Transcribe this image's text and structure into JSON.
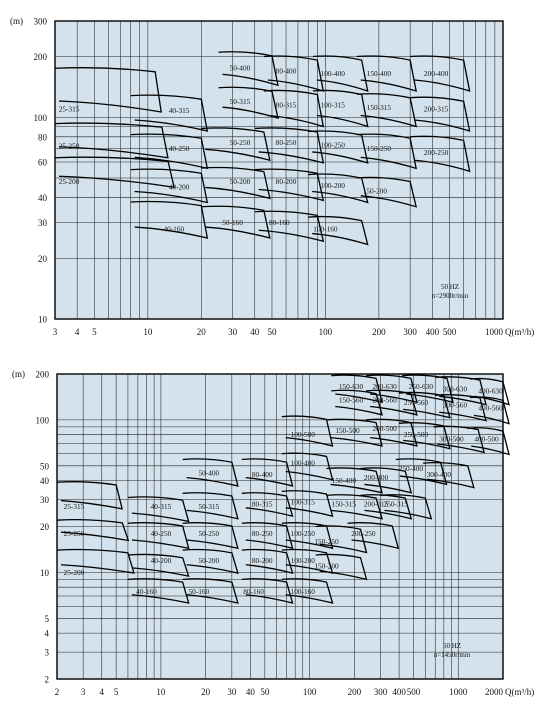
{
  "colors": {
    "plot_bg": "#d3e2ec",
    "line": "#000000"
  },
  "chart_data": [
    {
      "type": "line",
      "subtype": "pump-performance-range-chart",
      "log_scale": {
        "x": true,
        "y": true
      },
      "grid": true,
      "xlabel": "Q(m³/h)",
      "ylabel": "(m)",
      "xlim": [
        3,
        1000
      ],
      "ylim": [
        10,
        300
      ],
      "x_ticks": [
        {
          "v": 3,
          "label": "3"
        },
        {
          "v": 4,
          "label": "4"
        },
        {
          "v": 5,
          "label": "5"
        },
        {
          "v": 10,
          "label": "10"
        },
        {
          "v": 20,
          "label": "20"
        },
        {
          "v": 30,
          "label": "30"
        },
        {
          "v": 40,
          "label": "40"
        },
        {
          "v": 50,
          "label": "50"
        },
        {
          "v": 100,
          "label": "100"
        },
        {
          "v": 200,
          "label": "200"
        },
        {
          "v": 300,
          "label": "300"
        },
        {
          "v": 400,
          "label": "400"
        },
        {
          "v": 500,
          "label": "500"
        },
        {
          "v": 1000,
          "label": "1000"
        }
      ],
      "y_ticks": [
        {
          "v": 10,
          "label": "10"
        },
        {
          "v": 20,
          "label": "20"
        },
        {
          "v": 30,
          "label": "30"
        },
        {
          "v": 40,
          "label": "40"
        },
        {
          "v": 60,
          "label": "60"
        },
        {
          "v": 80,
          "label": "80"
        },
        {
          "v": 100,
          "label": "100"
        },
        {
          "v": 200,
          "label": "200"
        },
        {
          "v": 300,
          "label": "300"
        }
      ],
      "annotation": [
        "50 HZ",
        "n=2900r/min"
      ],
      "fields": [
        {
          "label": "25-315",
          "q": 3.6,
          "h": 110,
          "qL": 3,
          "qR": 11,
          "hTop": 175,
          "hBot": 118
        },
        {
          "label": "25-250",
          "q": 3.6,
          "h": 72,
          "qL": 3,
          "qR": 12,
          "hTop": 93,
          "hBot": 70
        },
        {
          "label": "25-200",
          "q": 3.6,
          "h": 48,
          "qL": 3,
          "qR": 13,
          "hTop": 63,
          "hBot": 50
        },
        {
          "label": "40-315",
          "q": 15,
          "h": 108,
          "qL": 8,
          "qR": 20,
          "hTop": 128,
          "hBot": 95
        },
        {
          "label": "40-250",
          "q": 15,
          "h": 70,
          "qL": 8,
          "qR": 20,
          "hTop": 82,
          "hBot": 62
        },
        {
          "label": "40-200",
          "q": 15,
          "h": 45,
          "qL": 8,
          "qR": 20,
          "hTop": 55,
          "hBot": 42
        },
        {
          "label": "40-160",
          "q": 14,
          "h": 28,
          "qL": 8,
          "qR": 20,
          "hTop": 38,
          "hBot": 28
        },
        {
          "label": "50-400",
          "q": 33,
          "h": 175,
          "qL": 25,
          "qR": 50,
          "hTop": 210,
          "hBot": 160
        },
        {
          "label": "50-315",
          "q": 33,
          "h": 120,
          "qL": 25,
          "qR": 50,
          "hTop": 140,
          "hBot": 110
        },
        {
          "label": "50-250",
          "q": 33,
          "h": 75,
          "qL": 20,
          "qR": 45,
          "hTop": 88,
          "hBot": 68
        },
        {
          "label": "50-200",
          "q": 33,
          "h": 48,
          "qL": 20,
          "qR": 45,
          "hTop": 56,
          "hBot": 44
        },
        {
          "label": "50-160",
          "q": 30,
          "h": 30,
          "qL": 20,
          "qR": 45,
          "hTop": 36,
          "hBot": 28
        },
        {
          "label": "80-400",
          "q": 60,
          "h": 170,
          "qL": 45,
          "qR": 90,
          "hTop": 200,
          "hBot": 150
        },
        {
          "label": "80-315",
          "q": 60,
          "h": 115,
          "qL": 45,
          "qR": 90,
          "hTop": 135,
          "hBot": 100
        },
        {
          "label": "80-250",
          "q": 60,
          "h": 75,
          "qL": 40,
          "qR": 90,
          "hTop": 88,
          "hBot": 66
        },
        {
          "label": "80-200",
          "q": 60,
          "h": 48,
          "qL": 40,
          "qR": 90,
          "hTop": 55,
          "hBot": 43
        },
        {
          "label": "80-160",
          "q": 55,
          "h": 30,
          "qL": 40,
          "qR": 90,
          "hTop": 34,
          "hBot": 27
        },
        {
          "label": "100-400",
          "q": 110,
          "h": 165,
          "qL": 85,
          "qR": 160,
          "hTop": 200,
          "hBot": 150
        },
        {
          "label": "100-315",
          "q": 110,
          "h": 115,
          "qL": 85,
          "qR": 160,
          "hTop": 135,
          "hBot": 100
        },
        {
          "label": "100-250",
          "q": 110,
          "h": 73,
          "qL": 80,
          "qR": 160,
          "hTop": 85,
          "hBot": 66
        },
        {
          "label": "100-200",
          "q": 110,
          "h": 46,
          "qL": 80,
          "qR": 160,
          "hTop": 52,
          "hBot": 42
        },
        {
          "label": "100-160",
          "q": 100,
          "h": 28,
          "qL": 80,
          "qR": 160,
          "hTop": 32,
          "hBot": 26
        },
        {
          "label": "150-400",
          "q": 200,
          "h": 165,
          "qL": 150,
          "qR": 300,
          "hTop": 200,
          "hBot": 150
        },
        {
          "label": "150-315",
          "q": 200,
          "h": 112,
          "qL": 150,
          "qR": 300,
          "hTop": 130,
          "hBot": 100
        },
        {
          "label": "150-250",
          "q": 200,
          "h": 70,
          "qL": 150,
          "qR": 300,
          "hTop": 82,
          "hBot": 62
        },
        {
          "label": "150-200",
          "q": 190,
          "h": 43,
          "qL": 150,
          "qR": 300,
          "hTop": 50,
          "hBot": 40
        },
        {
          "label": "200-400",
          "q": 420,
          "h": 165,
          "qL": 300,
          "qR": 600,
          "hTop": 200,
          "hBot": 150
        },
        {
          "label": "200-315",
          "q": 420,
          "h": 110,
          "qL": 300,
          "qR": 600,
          "hTop": 125,
          "hBot": 95
        },
        {
          "label": "200-250",
          "q": 420,
          "h": 67,
          "qL": 300,
          "qR": 600,
          "hTop": 80,
          "hBot": 60
        }
      ]
    },
    {
      "type": "line",
      "subtype": "pump-performance-range-chart",
      "log_scale": {
        "x": true,
        "y": true
      },
      "grid": true,
      "xlabel": "Q(m³/h)",
      "ylabel": "(m)",
      "xlim": [
        2,
        2000
      ],
      "ylim": [
        2,
        200
      ],
      "x_ticks": [
        {
          "v": 2,
          "label": "2"
        },
        {
          "v": 3,
          "label": "3"
        },
        {
          "v": 4,
          "label": "4"
        },
        {
          "v": 5,
          "label": "5"
        },
        {
          "v": 10,
          "label": "10"
        },
        {
          "v": 20,
          "label": "20"
        },
        {
          "v": 30,
          "label": "30"
        },
        {
          "v": 40,
          "label": "40"
        },
        {
          "v": 50,
          "label": "50"
        },
        {
          "v": 100,
          "label": "100"
        },
        {
          "v": 200,
          "label": "200"
        },
        {
          "v": 300,
          "label": "300"
        },
        {
          "v": 400,
          "label": "400"
        },
        {
          "v": 500,
          "label": "500"
        },
        {
          "v": 1000,
          "label": "1000"
        },
        {
          "v": 2000,
          "label": "2000"
        }
      ],
      "y_ticks": [
        {
          "v": 2,
          "label": "2"
        },
        {
          "v": 3,
          "label": "3"
        },
        {
          "v": 4,
          "label": "4"
        },
        {
          "v": 5,
          "label": "5"
        },
        {
          "v": 10,
          "label": "10"
        },
        {
          "v": 20,
          "label": "20"
        },
        {
          "v": 30,
          "label": "30"
        },
        {
          "v": 40,
          "label": "40"
        },
        {
          "v": 50,
          "label": "50"
        },
        {
          "v": 100,
          "label": "100"
        },
        {
          "v": 200,
          "label": "200"
        }
      ],
      "annotation": [
        "50 HZ",
        "n=1450r/min"
      ],
      "fields": [
        {
          "label": "25-315",
          "q": 2.6,
          "h": 27,
          "qL": 2,
          "qR": 5,
          "hTop": 39,
          "hBot": 29
        },
        {
          "label": "25-250",
          "q": 2.6,
          "h": 18,
          "qL": 2,
          "qR": 5.5,
          "hTop": 22,
          "hBot": 18
        },
        {
          "label": "25-200",
          "q": 2.6,
          "h": 10,
          "qL": 2,
          "qR": 6,
          "hTop": 14,
          "hBot": 11
        },
        {
          "label": "40-315",
          "q": 10,
          "h": 27,
          "qL": 6,
          "qR": 14,
          "hTop": 31,
          "hBot": 24
        },
        {
          "label": "40-250",
          "q": 10,
          "h": 18,
          "qL": 6,
          "qR": 14,
          "hTop": 21,
          "hBot": 16
        },
        {
          "label": "40-200",
          "q": 10,
          "h": 12,
          "qL": 6,
          "qR": 14,
          "hTop": 13,
          "hBot": 10.5
        },
        {
          "label": "40-160",
          "q": 8,
          "h": 7.5,
          "qL": 6,
          "qR": 14,
          "hTop": 9,
          "hBot": 7
        },
        {
          "label": "50-400",
          "q": 21,
          "h": 45,
          "qL": 14,
          "qR": 30,
          "hTop": 55,
          "hBot": 41
        },
        {
          "label": "50-315",
          "q": 21,
          "h": 27,
          "qL": 14,
          "qR": 30,
          "hTop": 33,
          "hBot": 25
        },
        {
          "label": "50-250",
          "q": 21,
          "h": 18,
          "qL": 14,
          "qR": 30,
          "hTop": 21,
          "hBot": 16
        },
        {
          "label": "50-200",
          "q": 21,
          "h": 12,
          "qL": 14,
          "qR": 30,
          "hTop": 14,
          "hBot": 11
        },
        {
          "label": "50-160",
          "q": 18,
          "h": 7.5,
          "qL": 14,
          "qR": 30,
          "hTop": 9,
          "hBot": 7
        },
        {
          "label": "80-400",
          "q": 48,
          "h": 44,
          "qL": 35,
          "qR": 70,
          "hTop": 55,
          "hBot": 41
        },
        {
          "label": "80-315",
          "q": 48,
          "h": 28,
          "qL": 35,
          "qR": 70,
          "hTop": 33,
          "hBot": 26
        },
        {
          "label": "80-250",
          "q": 48,
          "h": 18,
          "qL": 35,
          "qR": 70,
          "hTop": 21,
          "hBot": 16
        },
        {
          "label": "80-200",
          "q": 48,
          "h": 12,
          "qL": 35,
          "qR": 70,
          "hTop": 14,
          "hBot": 11
        },
        {
          "label": "80-160",
          "q": 42,
          "h": 7.5,
          "qL": 35,
          "qR": 70,
          "hTop": 9,
          "hBot": 7
        },
        {
          "label": "100-500",
          "q": 90,
          "h": 80,
          "qL": 65,
          "qR": 130,
          "hTop": 105,
          "hBot": 75
        },
        {
          "label": "100-400",
          "q": 90,
          "h": 52,
          "qL": 65,
          "qR": 130,
          "hTop": 60,
          "hBot": 45
        },
        {
          "label": "100-315",
          "q": 90,
          "h": 29,
          "qL": 65,
          "qR": 130,
          "hTop": 34,
          "hBot": 26
        },
        {
          "label": "100-250",
          "q": 90,
          "h": 18,
          "qL": 65,
          "qR": 130,
          "hTop": 21,
          "hBot": 16
        },
        {
          "label": "100-200",
          "q": 90,
          "h": 12,
          "qL": 65,
          "qR": 130,
          "hTop": 14,
          "hBot": 11
        },
        {
          "label": "100-160",
          "q": 90,
          "h": 7.5,
          "qL": 65,
          "qR": 130,
          "hTop": 9,
          "hBot": 7
        },
        {
          "label": "150-630",
          "q": 190,
          "h": 165,
          "qL": 140,
          "qR": 280,
          "hTop": 195,
          "hBot": 145
        },
        {
          "label": "150-560",
          "q": 190,
          "h": 135,
          "qL": 140,
          "qR": 280,
          "hTop": 155,
          "hBot": 120
        },
        {
          "label": "150-500",
          "q": 180,
          "h": 85,
          "qL": 130,
          "qR": 280,
          "hTop": 100,
          "hBot": 75
        },
        {
          "label": "150-400",
          "q": 170,
          "h": 40,
          "qL": 130,
          "qR": 280,
          "hTop": 48,
          "hBot": 37
        },
        {
          "label": "150-315",
          "q": 170,
          "h": 28,
          "qL": 130,
          "qR": 280,
          "hTop": 32,
          "hBot": 25
        },
        {
          "label": "150-250",
          "q": 130,
          "h": 16,
          "qL": 110,
          "qR": 220,
          "hTop": 20,
          "hBot": 15
        },
        {
          "label": "150-200",
          "q": 130,
          "h": 11,
          "qL": 110,
          "qR": 220,
          "hTop": 13,
          "hBot": 10
        },
        {
          "label": "200-630",
          "q": 320,
          "h": 165,
          "qL": 240,
          "qR": 480,
          "hTop": 195,
          "hBot": 145
        },
        {
          "label": "200-560",
          "q": 320,
          "h": 135,
          "qL": 240,
          "qR": 480,
          "hTop": 155,
          "hBot": 120
        },
        {
          "label": "200-500",
          "q": 320,
          "h": 88,
          "qL": 240,
          "qR": 480,
          "hTop": 100,
          "hBot": 75
        },
        {
          "label": "200-400",
          "q": 280,
          "h": 42,
          "qL": 220,
          "qR": 440,
          "hTop": 48,
          "hBot": 37
        },
        {
          "label": "200-315",
          "q": 280,
          "h": 28,
          "qL": 220,
          "qR": 440,
          "hTop": 32,
          "hBot": 25
        },
        {
          "label": "200-250",
          "q": 230,
          "h": 18,
          "qL": 180,
          "qR": 360,
          "hTop": 21,
          "hBot": 16
        },
        {
          "label": "250-630",
          "q": 560,
          "h": 165,
          "qL": 420,
          "qR": 840,
          "hTop": 195,
          "hBot": 145
        },
        {
          "label": "250-560",
          "q": 520,
          "h": 130,
          "qL": 400,
          "qR": 800,
          "hTop": 150,
          "hBot": 115
        },
        {
          "label": "250-500",
          "q": 520,
          "h": 80,
          "qL": 400,
          "qR": 800,
          "hTop": 95,
          "hBot": 72
        },
        {
          "label": "250-400",
          "q": 480,
          "h": 48,
          "qL": 380,
          "qR": 760,
          "hTop": 55,
          "hBot": 42
        },
        {
          "label": "250-315",
          "q": 380,
          "h": 28,
          "qL": 300,
          "qR": 600,
          "hTop": 32,
          "hBot": 25
        },
        {
          "label": "300-630",
          "q": 950,
          "h": 160,
          "qL": 700,
          "qR": 1400,
          "hTop": 190,
          "hBot": 140
        },
        {
          "label": "300-560",
          "q": 950,
          "h": 125,
          "qL": 700,
          "qR": 1400,
          "hTop": 145,
          "hBot": 110
        },
        {
          "label": "300-500",
          "q": 900,
          "h": 75,
          "qL": 680,
          "qR": 1360,
          "hTop": 90,
          "hBot": 68
        },
        {
          "label": "300-400",
          "q": 740,
          "h": 44,
          "qL": 580,
          "qR": 1160,
          "hTop": 52,
          "hBot": 40
        },
        {
          "label": "400-630",
          "q": 1650,
          "h": 155,
          "qL": 1200,
          "qR": 2000,
          "hTop": 185,
          "hBot": 140
        },
        {
          "label": "400-560",
          "q": 1650,
          "h": 120,
          "qL": 1200,
          "qR": 2000,
          "hTop": 140,
          "hBot": 105
        },
        {
          "label": "400-500",
          "q": 1550,
          "h": 75,
          "qL": 1150,
          "qR": 2000,
          "hTop": 88,
          "hBot": 66
        }
      ]
    }
  ]
}
